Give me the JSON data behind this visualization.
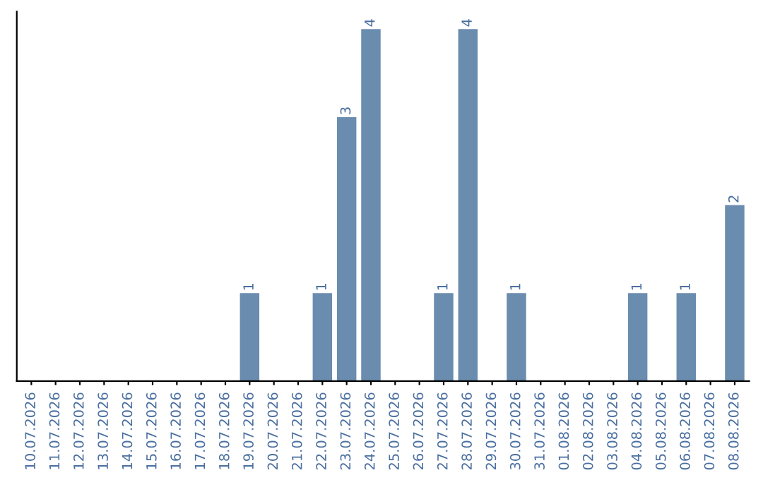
{
  "chart_data": {
    "type": "bar",
    "categories": [
      "10.07.2026",
      "11.07.2026",
      "12.07.2026",
      "13.07.2026",
      "14.07.2026",
      "15.07.2026",
      "16.07.2026",
      "17.07.2026",
      "18.07.2026",
      "19.07.2026",
      "20.07.2026",
      "21.07.2026",
      "22.07.2026",
      "23.07.2026",
      "24.07.2026",
      "25.07.2026",
      "26.07.2026",
      "27.07.2026",
      "28.07.2026",
      "29.07.2026",
      "30.07.2026",
      "31.07.2026",
      "01.08.2026",
      "02.08.2026",
      "03.08.2026",
      "04.08.2026",
      "05.08.2026",
      "06.08.2026",
      "07.08.2026",
      "08.08.2026"
    ],
    "values": [
      0,
      0,
      0,
      0,
      0,
      0,
      0,
      0,
      0,
      1,
      0,
      0,
      1,
      3,
      4,
      0,
      0,
      1,
      4,
      0,
      1,
      0,
      0,
      0,
      0,
      1,
      0,
      1,
      0,
      2
    ],
    "value_labels": [
      null,
      null,
      null,
      null,
      null,
      null,
      null,
      null,
      null,
      "1",
      null,
      null,
      "1",
      "3",
      "4",
      null,
      null,
      "1",
      "4",
      null,
      "1",
      null,
      null,
      null,
      null,
      "1",
      null,
      "1",
      null,
      "2"
    ],
    "color": "#6a8caf",
    "grid": false
  }
}
